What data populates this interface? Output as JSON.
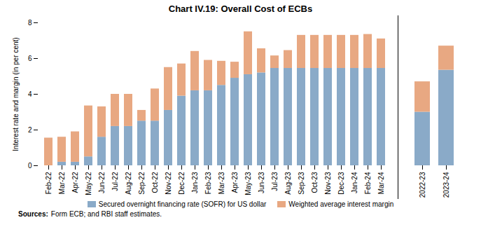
{
  "chart_data": [
    {
      "type": "bar",
      "stacked": true,
      "title": "Chart IV.19: Overall Cost of ECBs",
      "ylabel": "Interest rate and margin (in per cent)",
      "categories": [
        "Feb-22",
        "Mar-22",
        "Apr-22",
        "May-22",
        "Jun-22",
        "Jul-22",
        "Aug-22",
        "Sep-22",
        "Oct-22",
        "Nov-22",
        "Dec-22",
        "Jan-23",
        "Feb-23",
        "Mar-23",
        "Apr-23",
        "May-23",
        "Jun-23",
        "Jul-23",
        "Aug-23",
        "Sep-23",
        "Oct-23",
        "Nov-23",
        "Dec-23",
        "Jan-24",
        "Feb-24",
        "Mar-24"
      ],
      "series": [
        {
          "name": "Secured overnight financing rate (SOFR) for US dollar",
          "color": "#8aaac8",
          "values": [
            0.0,
            0.2,
            0.2,
            0.5,
            1.6,
            2.2,
            2.2,
            2.5,
            2.5,
            3.1,
            3.9,
            4.2,
            4.2,
            4.5,
            4.9,
            5.1,
            5.2,
            5.45,
            5.45,
            5.45,
            5.45,
            5.45,
            5.45,
            5.45,
            5.45,
            5.45
          ]
        },
        {
          "name": "Weighted average interest margin",
          "color": "#e8a882",
          "values": [
            1.55,
            1.4,
            1.7,
            2.85,
            1.7,
            1.8,
            1.8,
            0.6,
            1.8,
            2.4,
            1.8,
            2.2,
            1.7,
            1.35,
            0.9,
            2.4,
            1.35,
            0.7,
            1.0,
            1.85,
            1.85,
            1.85,
            1.85,
            1.85,
            1.9,
            1.65
          ]
        }
      ],
      "ylim": [
        0,
        8
      ],
      "yticks": [
        0,
        2,
        4,
        6,
        8
      ],
      "legend": "bottom",
      "annotations": [
        "Sources:",
        "Form ECB; and RBI staff estimates."
      ]
    },
    {
      "type": "bar",
      "stacked": true,
      "categories": [
        "2022-23",
        "2023-24"
      ],
      "series": [
        {
          "name": "Secured overnight financing rate (SOFR) for US dollar",
          "color": "#8aaac8",
          "values": [
            3.0,
            5.35
          ]
        },
        {
          "name": "Weighted average interest margin",
          "color": "#e8a882",
          "values": [
            1.7,
            1.35
          ]
        }
      ],
      "ylim": [
        0,
        8
      ],
      "yticks": [
        0,
        2,
        4,
        6,
        8
      ],
      "tick_labels": "x"
    }
  ]
}
